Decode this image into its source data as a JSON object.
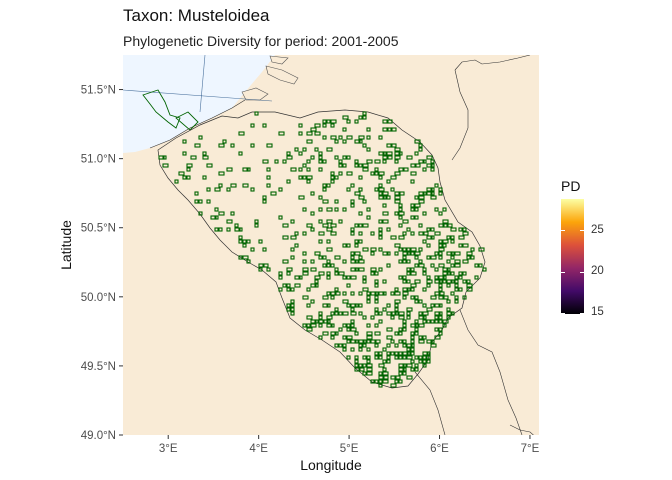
{
  "map": {
    "title": "Taxon: Musteloidea",
    "subtitle": "Phylogenetic Diversity for period: 2001-2005",
    "xlabel": "Longitude",
    "ylabel": "Latitude",
    "x_ticks": [
      "3°E",
      "4°E",
      "5°E",
      "6°E",
      "7°E"
    ],
    "y_ticks": [
      "51.5°N",
      "51.0°N",
      "50.5°N",
      "50.0°N",
      "49.5°N",
      "49.0°N"
    ],
    "xlim": [
      2.5,
      7.1
    ],
    "ylim": [
      49.0,
      51.75
    ],
    "land_color": "#f9ebd6",
    "sea_color": "#eef6ff",
    "grid_color": "#063b75",
    "cell_outline_color": "#006400",
    "region": "Belgium"
  },
  "legend": {
    "title": "PD",
    "labels": [
      "25",
      "20",
      "15"
    ],
    "range": [
      15,
      29
    ],
    "palette": "inferno"
  }
}
